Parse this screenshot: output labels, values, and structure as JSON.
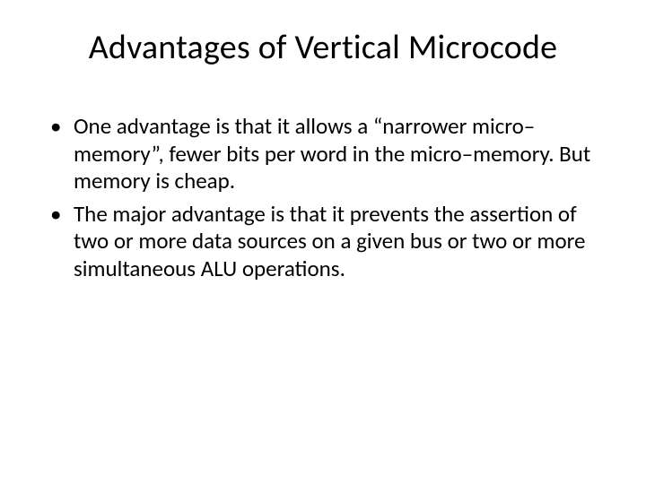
{
  "slide": {
    "title": "Advantages of Vertical Microcode",
    "title_fontsize": 38,
    "title_color": "#000000",
    "body_fontsize": 25,
    "body_color": "#000000",
    "background_color": "#ffffff",
    "bullets": [
      "One advantage is that it allows a “narrower micro–memory”,  fewer bits per word in the micro–memory.  But memory is cheap.",
      "The major advantage is that it prevents the assertion of two or more data sources on a given bus or two or more simultaneous ALU operations."
    ]
  }
}
